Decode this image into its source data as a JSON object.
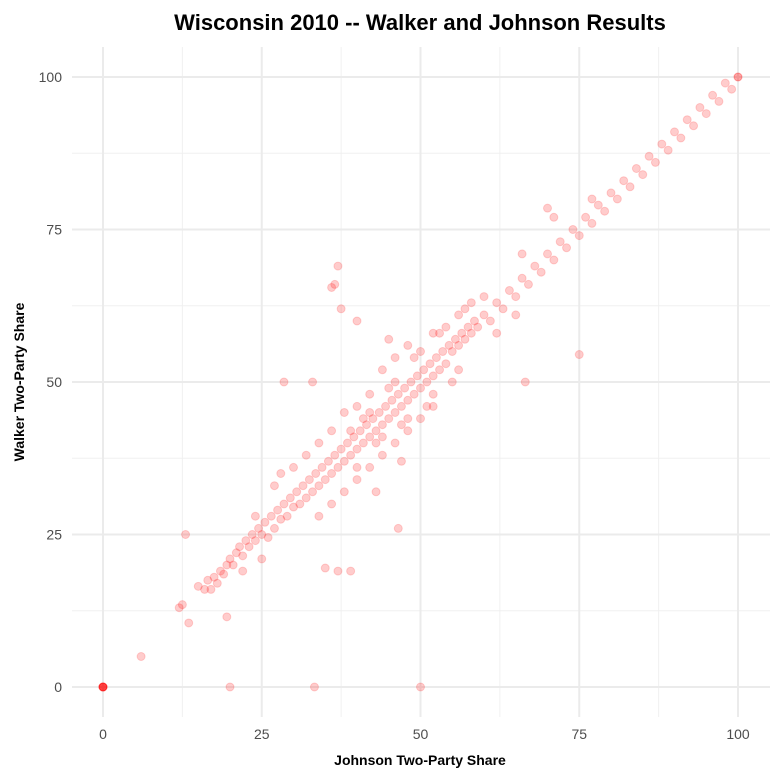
{
  "chart_data": {
    "type": "scatter",
    "title": "Wisconsin 2010 -- Walker and Johnson Results",
    "xlabel": "Johnson Two-Party Share",
    "ylabel": "Walker Two-Party Share",
    "xlim": [
      -5,
      105
    ],
    "ylim": [
      -5,
      105
    ],
    "xticks": [
      "0",
      "25",
      "50",
      "75",
      "100"
    ],
    "yticks": [
      "0",
      "25",
      "50",
      "75",
      "100"
    ],
    "grid": true,
    "legend": "none",
    "point_color": "#ff0000",
    "point_alpha": 0.2,
    "points": [
      [
        0,
        0
      ],
      [
        0,
        0
      ],
      [
        0,
        0
      ],
      [
        0,
        0
      ],
      [
        0,
        0
      ],
      [
        0,
        0
      ],
      [
        6,
        5
      ],
      [
        20,
        0
      ],
      [
        33.3,
        0
      ],
      [
        50,
        0
      ],
      [
        12,
        13
      ],
      [
        12.5,
        13.5
      ],
      [
        13,
        25
      ],
      [
        13.5,
        10.5
      ],
      [
        17,
        16
      ],
      [
        19.5,
        11.5
      ],
      [
        15,
        16.5
      ],
      [
        16,
        16
      ],
      [
        16.5,
        17.5
      ],
      [
        17.5,
        18
      ],
      [
        18,
        17
      ],
      [
        18.5,
        19
      ],
      [
        19,
        18.5
      ],
      [
        19.5,
        20
      ],
      [
        20,
        21
      ],
      [
        20.5,
        20
      ],
      [
        21,
        22
      ],
      [
        21.5,
        23
      ],
      [
        22,
        21.5
      ],
      [
        22.5,
        24
      ],
      [
        23,
        23
      ],
      [
        23.5,
        25
      ],
      [
        24,
        24
      ],
      [
        24.5,
        26
      ],
      [
        25,
        25
      ],
      [
        25.5,
        27
      ],
      [
        26,
        24.5
      ],
      [
        26.5,
        28
      ],
      [
        27,
        26
      ],
      [
        27.5,
        29
      ],
      [
        28,
        27.5
      ],
      [
        28.5,
        30
      ],
      [
        29,
        28
      ],
      [
        29.5,
        31
      ],
      [
        30,
        29.5
      ],
      [
        30.5,
        32
      ],
      [
        31,
        30
      ],
      [
        31.5,
        33
      ],
      [
        32,
        31
      ],
      [
        32.5,
        34
      ],
      [
        33,
        32
      ],
      [
        33.5,
        35
      ],
      [
        34,
        33
      ],
      [
        34.5,
        36
      ],
      [
        35,
        34
      ],
      [
        35.5,
        37
      ],
      [
        36,
        35
      ],
      [
        36.5,
        38
      ],
      [
        37,
        36
      ],
      [
        37.5,
        39
      ],
      [
        38,
        37
      ],
      [
        38.5,
        40
      ],
      [
        39,
        38
      ],
      [
        39.5,
        41
      ],
      [
        40,
        39
      ],
      [
        40.5,
        42
      ],
      [
        41,
        40
      ],
      [
        41.5,
        43
      ],
      [
        42,
        41
      ],
      [
        42.5,
        44
      ],
      [
        43,
        42
      ],
      [
        43.5,
        45
      ],
      [
        44,
        43
      ],
      [
        44.5,
        46
      ],
      [
        45,
        44
      ],
      [
        45.5,
        47
      ],
      [
        46,
        45
      ],
      [
        46.5,
        48
      ],
      [
        47,
        46
      ],
      [
        47.5,
        49
      ],
      [
        48,
        47
      ],
      [
        48.5,
        50
      ],
      [
        49,
        48
      ],
      [
        49.5,
        51
      ],
      [
        50,
        49
      ],
      [
        50.5,
        52
      ],
      [
        51,
        50
      ],
      [
        51.5,
        53
      ],
      [
        52,
        51
      ],
      [
        52.5,
        54
      ],
      [
        53,
        52
      ],
      [
        53.5,
        55
      ],
      [
        54,
        53
      ],
      [
        54.5,
        56
      ],
      [
        55,
        55
      ],
      [
        55.5,
        57
      ],
      [
        56,
        56
      ],
      [
        56.5,
        58
      ],
      [
        57,
        57
      ],
      [
        57.5,
        59
      ],
      [
        58,
        58
      ],
      [
        58.5,
        60
      ],
      [
        59,
        59
      ],
      [
        60,
        61
      ],
      [
        61,
        60
      ],
      [
        62,
        63
      ],
      [
        63,
        62
      ],
      [
        64,
        65
      ],
      [
        65,
        64
      ],
      [
        66,
        67
      ],
      [
        67,
        66
      ],
      [
        68,
        69
      ],
      [
        69,
        68
      ],
      [
        70,
        71
      ],
      [
        71,
        70
      ],
      [
        72,
        73
      ],
      [
        73,
        72
      ],
      [
        74,
        75
      ],
      [
        75,
        74
      ],
      [
        76,
        77
      ],
      [
        77,
        76
      ],
      [
        78,
        79
      ],
      [
        79,
        78
      ],
      [
        80,
        81
      ],
      [
        81,
        80
      ],
      [
        82,
        83
      ],
      [
        83,
        82
      ],
      [
        84,
        85
      ],
      [
        85,
        84
      ],
      [
        86,
        87
      ],
      [
        87,
        86
      ],
      [
        88,
        89
      ],
      [
        89,
        88
      ],
      [
        90,
        91
      ],
      [
        91,
        90
      ],
      [
        92,
        93
      ],
      [
        93,
        92
      ],
      [
        94,
        95
      ],
      [
        95,
        94
      ],
      [
        96,
        97
      ],
      [
        97,
        96
      ],
      [
        98,
        99
      ],
      [
        99,
        98
      ],
      [
        100,
        100
      ],
      [
        100,
        100
      ],
      [
        30,
        36
      ],
      [
        32,
        38
      ],
      [
        34,
        40
      ],
      [
        36,
        42
      ],
      [
        38,
        45
      ],
      [
        40,
        46
      ],
      [
        42,
        48
      ],
      [
        44,
        52
      ],
      [
        46,
        54
      ],
      [
        48,
        56
      ],
      [
        34,
        28
      ],
      [
        36,
        30
      ],
      [
        38,
        32
      ],
      [
        40,
        34
      ],
      [
        42,
        36
      ],
      [
        44,
        38
      ],
      [
        46,
        40
      ],
      [
        48,
        42
      ],
      [
        50,
        44
      ],
      [
        52,
        46
      ],
      [
        39,
        42
      ],
      [
        41,
        44
      ],
      [
        43,
        40
      ],
      [
        45,
        49
      ],
      [
        47,
        43
      ],
      [
        49,
        54
      ],
      [
        51,
        46
      ],
      [
        53,
        58
      ],
      [
        55,
        50
      ],
      [
        57,
        62
      ],
      [
        40,
        36
      ],
      [
        42,
        45
      ],
      [
        44,
        41
      ],
      [
        46,
        50
      ],
      [
        48,
        44
      ],
      [
        50,
        55
      ],
      [
        52,
        48
      ],
      [
        54,
        59
      ],
      [
        56,
        52
      ],
      [
        58,
        63
      ],
      [
        37,
        69
      ],
      [
        36.5,
        66
      ],
      [
        36,
        65.5
      ],
      [
        37.5,
        62
      ],
      [
        28.5,
        50
      ],
      [
        33,
        50
      ],
      [
        66.5,
        50
      ],
      [
        75,
        54.5
      ],
      [
        46.5,
        26
      ],
      [
        37,
        19
      ],
      [
        39,
        19
      ],
      [
        35,
        19.5
      ],
      [
        66,
        71
      ],
      [
        71,
        77
      ],
      [
        70,
        78.5
      ],
      [
        77,
        80
      ],
      [
        60,
        64
      ],
      [
        25,
        21
      ],
      [
        28,
        35
      ],
      [
        40,
        60
      ],
      [
        24,
        28
      ],
      [
        22,
        19
      ],
      [
        27,
        33
      ],
      [
        43,
        32
      ],
      [
        47,
        37
      ],
      [
        52,
        58
      ],
      [
        45,
        57
      ],
      [
        56,
        61
      ],
      [
        62,
        58
      ],
      [
        65,
        61
      ]
    ]
  }
}
